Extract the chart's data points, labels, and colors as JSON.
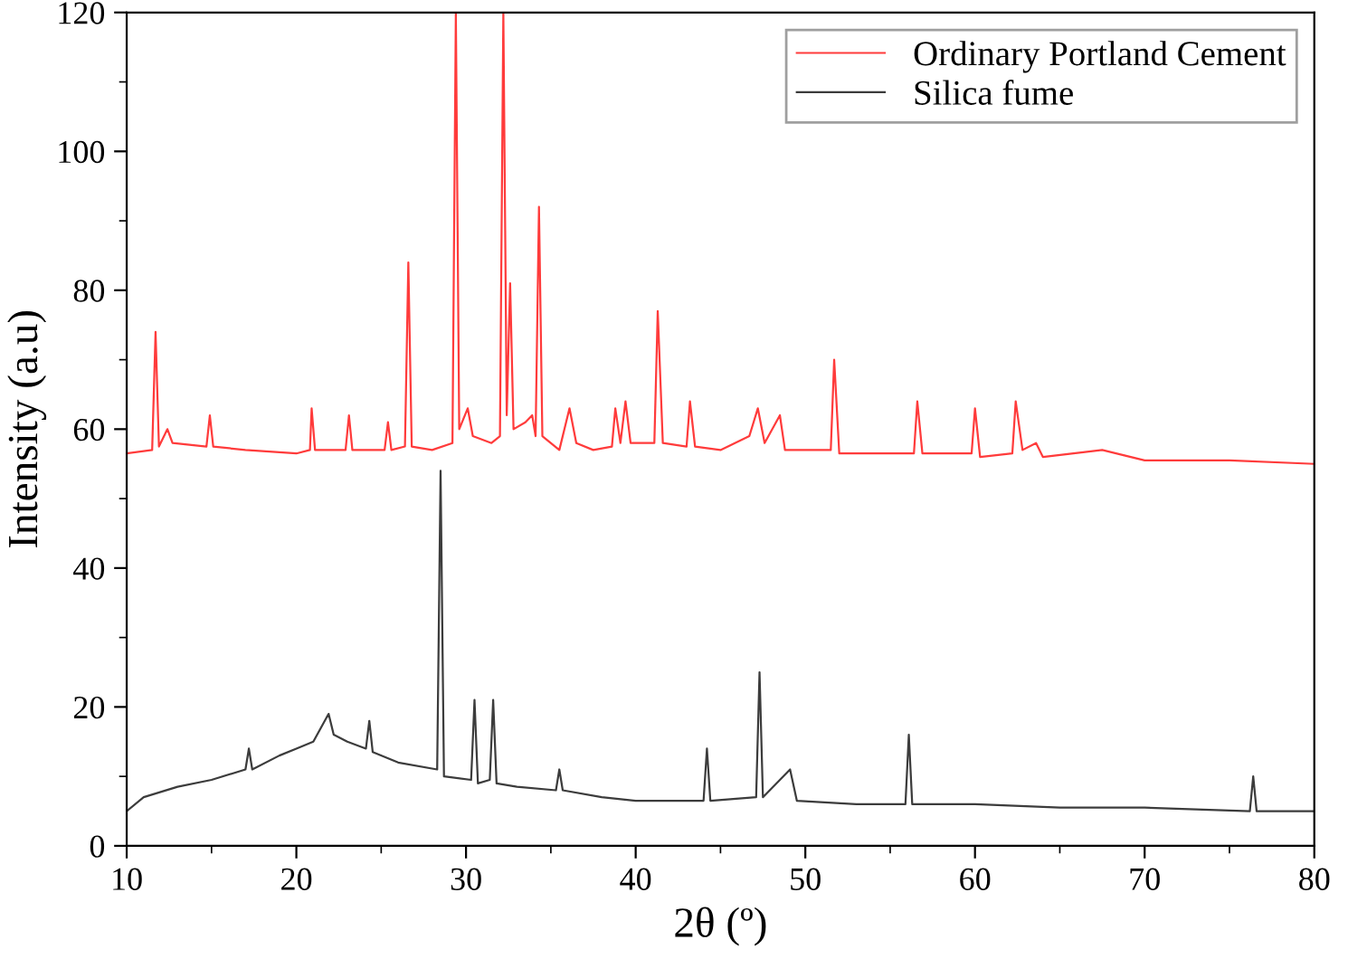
{
  "chart_data": {
    "type": "line",
    "xlabel": "2θ (º)",
    "ylabel": "Intensity (a.u)",
    "xlim": [
      10,
      80
    ],
    "xticks": [
      10,
      20,
      30,
      40,
      50,
      60,
      70,
      80
    ],
    "ylim": [
      0,
      120
    ],
    "yticks": [
      0,
      20,
      40,
      60,
      80,
      100,
      120
    ],
    "grid": false,
    "legend": "top right",
    "marker": "none",
    "line_style": "solid",
    "series": [
      {
        "name": "Ordinary Portland Cement",
        "color": "#ff3b3b",
        "x": [
          10,
          11.5,
          11.7,
          11.9,
          12.4,
          12.7,
          14.7,
          14.9,
          15.1,
          17,
          20,
          20.8,
          20.9,
          21.1,
          22.9,
          23.1,
          23.3,
          25.2,
          25.4,
          25.6,
          26.4,
          26.6,
          26.8,
          28,
          29.2,
          29.4,
          29.6,
          30.1,
          30.4,
          31.5,
          32.0,
          32.2,
          32.4,
          32.6,
          32.8,
          33.5,
          33.9,
          34.1,
          34.3,
          34.5,
          35.5,
          36.1,
          36.5,
          37.5,
          38.6,
          38.8,
          39.1,
          39.4,
          39.7,
          41.1,
          41.3,
          41.6,
          43.0,
          43.2,
          43.5,
          45,
          46.7,
          47.2,
          47.6,
          48.5,
          48.8,
          50,
          51.5,
          51.7,
          52,
          54,
          56.4,
          56.6,
          56.9,
          59.8,
          60.0,
          60.3,
          62.2,
          62.4,
          62.8,
          63.6,
          64,
          67.5,
          70,
          75,
          80
        ],
        "values": [
          56.5,
          57,
          74,
          57.5,
          60,
          58,
          57.5,
          62,
          57.5,
          57,
          56.5,
          57,
          63,
          57,
          57,
          62,
          57,
          57,
          61,
          57,
          57.5,
          84,
          57.5,
          57,
          58,
          120,
          60,
          63,
          59,
          58,
          59,
          120,
          62,
          81,
          60,
          61,
          62,
          59,
          92,
          59,
          57,
          63,
          58,
          57,
          57.5,
          63,
          58,
          64,
          58,
          58,
          77,
          58,
          57.5,
          64,
          57.5,
          57,
          59,
          63,
          58,
          62,
          57,
          57,
          57,
          70,
          56.5,
          56.5,
          56.5,
          64,
          56.5,
          56.5,
          63,
          56,
          56.5,
          64,
          57,
          58,
          56,
          57,
          55.5,
          55.5,
          55
        ]
      },
      {
        "name": "Silica fume",
        "color": "#3c3c3c",
        "x": [
          10,
          11,
          13,
          15,
          17,
          17.2,
          17.4,
          19,
          20,
          21,
          21.9,
          22.2,
          23,
          24.1,
          24.3,
          24.5,
          26,
          28.3,
          28.5,
          28.7,
          30.3,
          30.5,
          30.7,
          31.4,
          31.6,
          31.8,
          33,
          35.3,
          35.5,
          35.7,
          38,
          40,
          44,
          44.2,
          44.4,
          47.1,
          47.3,
          47.5,
          49.1,
          49.5,
          53,
          55.9,
          56.1,
          56.3,
          60,
          65,
          70,
          76.2,
          76.4,
          76.6,
          80
        ],
        "values": [
          5,
          7,
          8.5,
          9.5,
          11,
          14,
          11,
          13,
          14,
          15,
          19,
          16,
          15,
          14,
          18,
          13.5,
          12,
          11,
          54,
          10,
          9.5,
          21,
          9,
          9.5,
          21,
          9,
          8.5,
          8,
          11,
          8,
          7,
          6.5,
          6.5,
          14,
          6.5,
          7,
          25,
          7,
          11,
          6.5,
          6,
          6,
          16,
          6,
          6,
          5.5,
          5.5,
          5,
          10,
          5,
          5
        ]
      }
    ]
  }
}
